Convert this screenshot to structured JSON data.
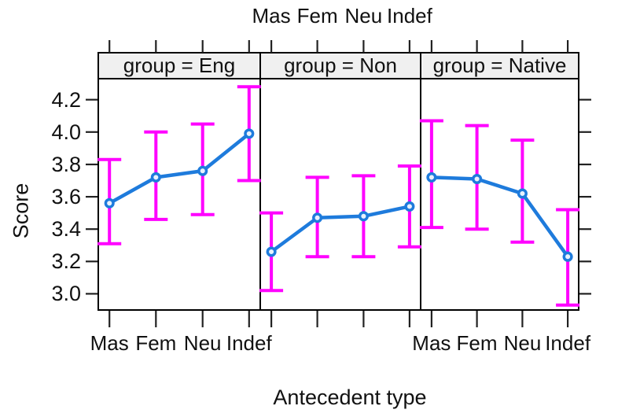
{
  "chart_data": {
    "type": "line",
    "title": "",
    "xlabel": "Antecedent type",
    "ylabel": "Score",
    "categories": [
      "Mas",
      "Fem",
      "Neu",
      "Indef"
    ],
    "y_ticks": [
      3.0,
      3.2,
      3.4,
      3.6,
      3.8,
      4.0,
      4.2
    ],
    "ylim": [
      2.9,
      4.33
    ],
    "grid": false,
    "legend": "none",
    "panels": [
      {
        "strip_label": "group = Eng",
        "series_name": "Eng",
        "values": [
          3.56,
          3.72,
          3.76,
          3.99
        ],
        "err_low": [
          3.31,
          3.46,
          3.49,
          3.7
        ],
        "err_high": [
          3.83,
          4.0,
          4.05,
          4.28
        ]
      },
      {
        "strip_label": "group = Non",
        "series_name": "Non",
        "values": [
          3.26,
          3.47,
          3.48,
          3.54
        ],
        "err_low": [
          3.02,
          3.23,
          3.23,
          3.29
        ],
        "err_high": [
          3.5,
          3.72,
          3.73,
          3.79
        ]
      },
      {
        "strip_label": "group = Native",
        "series_name": "Native",
        "values": [
          3.72,
          3.71,
          3.62,
          3.23
        ],
        "err_low": [
          3.41,
          3.4,
          3.32,
          2.93
        ],
        "err_high": [
          4.07,
          4.04,
          3.95,
          3.52
        ]
      }
    ],
    "colors": {
      "line": "#1E7BDC",
      "marker_fill": "#E8F2FC",
      "error_bar": "#FF00FF",
      "strip_bg": "#F0F0F0",
      "border": "#000000",
      "tick": "#222222",
      "text": "#111111"
    }
  }
}
